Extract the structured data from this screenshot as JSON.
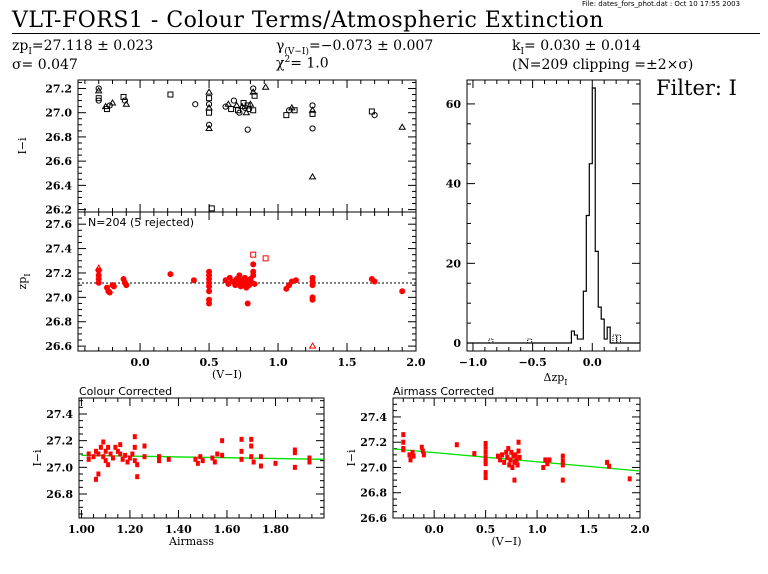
{
  "header": {
    "file_info": "File: dates_fors_phot.dat : Oct 10 17:55 2003",
    "title": "VLT-FORS1  -  Colour Terms/Atmospheric Extinction",
    "zp": "zp",
    "zp_sub": "I",
    "zp_value": "=27.118 ± 0.023",
    "sigma": "σ= 0.047",
    "gamma": "γ",
    "gamma_sub": "(V−I)",
    "gamma_value": "=−0.073 ± 0.007",
    "chi2": "χ",
    "chi2_sup": "2",
    "chi2_value": "=  1.0",
    "k": "k",
    "k_sub": "I",
    "k_value": "= 0.030 ± 0.014",
    "clipping": "(N=209 clipping =±2×σ)",
    "filter": "Filter: I"
  },
  "colors": {
    "red": "#ff0000",
    "green": "#00e000",
    "black": "#000000"
  },
  "chart_data": [
    {
      "id": "top",
      "type": "scatter",
      "ylabel": "I−i",
      "xlim": [
        -0.45,
        2.0
      ],
      "ylim": [
        26.18,
        27.27
      ],
      "yticks": [
        "27.2",
        "27.0",
        "26.8",
        "26.6",
        "26.4",
        "26.2"
      ],
      "ytick_values": [
        27.2,
        27.0,
        26.8,
        26.6,
        26.4,
        26.2
      ],
      "xtick_values": [
        0.0,
        0.5,
        1.0,
        1.5,
        2.0
      ],
      "points": [
        [
          -0.3,
          27.2
        ],
        [
          -0.3,
          27.18
        ],
        [
          -0.3,
          27.12
        ],
        [
          -0.3,
          27.1
        ],
        [
          -0.25,
          27.05
        ],
        [
          -0.24,
          27.03
        ],
        [
          -0.22,
          27.06
        ],
        [
          -0.2,
          27.08
        ],
        [
          -0.12,
          27.13
        ],
        [
          -0.11,
          27.1
        ],
        [
          -0.1,
          27.07
        ],
        [
          0.22,
          27.15
        ],
        [
          0.4,
          27.07
        ],
        [
          0.5,
          27.17
        ],
        [
          0.5,
          27.12
        ],
        [
          0.5,
          27.07
        ],
        [
          0.5,
          27.04
        ],
        [
          0.5,
          27.0
        ],
        [
          0.5,
          26.9
        ],
        [
          0.5,
          26.87
        ],
        [
          0.52,
          26.21
        ],
        [
          0.62,
          27.05
        ],
        [
          0.64,
          27.07
        ],
        [
          0.66,
          27.03
        ],
        [
          0.68,
          27.1
        ],
        [
          0.7,
          27.06
        ],
        [
          0.71,
          27.02
        ],
        [
          0.72,
          27.0
        ],
        [
          0.74,
          27.05
        ],
        [
          0.75,
          27.08
        ],
        [
          0.76,
          27.04
        ],
        [
          0.77,
          27.0
        ],
        [
          0.78,
          27.06
        ],
        [
          0.79,
          27.03
        ],
        [
          0.8,
          27.07
        ],
        [
          0.82,
          27.02
        ],
        [
          0.82,
          27.2
        ],
        [
          0.82,
          27.17
        ],
        [
          0.83,
          27.14
        ],
        [
          0.78,
          26.86
        ],
        [
          0.91,
          27.21
        ],
        [
          1.06,
          26.98
        ],
        [
          1.08,
          27.02
        ],
        [
          1.1,
          27.04
        ],
        [
          1.12,
          27.02
        ],
        [
          1.25,
          27.06
        ],
        [
          1.25,
          27.02
        ],
        [
          1.25,
          26.99
        ],
        [
          1.25,
          26.87
        ],
        [
          1.25,
          26.47
        ],
        [
          1.68,
          27.01
        ],
        [
          1.7,
          26.98
        ],
        [
          1.9,
          26.88
        ]
      ]
    },
    {
      "id": "mid",
      "type": "scatter",
      "ylabel": "zp",
      "ylabel_sub": "I",
      "xlabel": "(V−I)",
      "annotation": "N=204 (5 rejected)",
      "xlim": [
        -0.45,
        2.0
      ],
      "ylim": [
        26.56,
        27.7
      ],
      "fit_line": 27.118,
      "xticks": [
        "0.0",
        "0.5",
        "1.0",
        "1.5",
        "2.0"
      ],
      "xtick_values": [
        0.0,
        0.5,
        1.0,
        1.5,
        2.0
      ],
      "yticks": [
        "27.6",
        "27.4",
        "27.2",
        "27.0",
        "26.8",
        "26.6"
      ],
      "ytick_values": [
        27.6,
        27.4,
        27.2,
        27.0,
        26.8,
        26.6
      ],
      "points": [
        [
          -0.3,
          27.22
        ],
        [
          -0.3,
          27.18
        ],
        [
          -0.3,
          27.15
        ],
        [
          -0.3,
          27.12
        ],
        [
          -0.24,
          27.08
        ],
        [
          -0.23,
          27.05
        ],
        [
          -0.22,
          27.04
        ],
        [
          -0.2,
          27.1
        ],
        [
          -0.19,
          27.09
        ],
        [
          -0.12,
          27.15
        ],
        [
          -0.11,
          27.12
        ],
        [
          -0.1,
          27.1
        ],
        [
          0.22,
          27.19
        ],
        [
          0.39,
          27.14
        ],
        [
          0.5,
          27.21
        ],
        [
          0.5,
          27.18
        ],
        [
          0.5,
          27.15
        ],
        [
          0.5,
          27.12
        ],
        [
          0.5,
          27.09
        ],
        [
          0.5,
          27.05
        ],
        [
          0.5,
          26.98
        ],
        [
          0.5,
          26.95
        ],
        [
          0.62,
          27.14
        ],
        [
          0.64,
          27.11
        ],
        [
          0.65,
          27.16
        ],
        [
          0.67,
          27.13
        ],
        [
          0.69,
          27.1
        ],
        [
          0.7,
          27.15
        ],
        [
          0.71,
          27.12
        ],
        [
          0.72,
          27.18
        ],
        [
          0.73,
          27.09
        ],
        [
          0.74,
          27.14
        ],
        [
          0.75,
          27.11
        ],
        [
          0.76,
          27.16
        ],
        [
          0.77,
          27.08
        ],
        [
          0.78,
          27.13
        ],
        [
          0.79,
          27.1
        ],
        [
          0.8,
          27.15
        ],
        [
          0.81,
          27.12
        ],
        [
          0.82,
          27.18
        ],
        [
          0.82,
          27.21
        ],
        [
          0.83,
          27.11
        ],
        [
          0.78,
          26.95
        ],
        [
          0.82,
          27.27
        ],
        [
          1.06,
          27.07
        ],
        [
          1.08,
          27.1
        ],
        [
          1.1,
          27.13
        ],
        [
          1.13,
          27.14
        ],
        [
          1.25,
          27.16
        ],
        [
          1.25,
          27.13
        ],
        [
          1.25,
          27.1
        ],
        [
          1.25,
          27.0
        ],
        [
          1.25,
          26.98
        ],
        [
          1.68,
          27.15
        ],
        [
          1.7,
          27.13
        ],
        [
          1.9,
          27.05
        ]
      ],
      "rejected": [
        [
          -0.3,
          27.24
        ],
        [
          0.82,
          27.35
        ],
        [
          0.91,
          27.32
        ],
        [
          1.25,
          26.6
        ]
      ]
    },
    {
      "id": "hist",
      "type": "histogram",
      "xlabel": "Δzp",
      "xlabel_sub": "I",
      "xlim": [
        -1.05,
        0.4
      ],
      "ylim": [
        -2,
        66
      ],
      "xticks": [
        "−1.0",
        "−0.5",
        "0.0"
      ],
      "xtick_values": [
        -1.0,
        -0.5,
        0.0
      ],
      "yticks": [
        "60",
        "40",
        "20",
        "0"
      ],
      "ytick_values": [
        60,
        40,
        20,
        0
      ],
      "bin_edges": [
        -0.175,
        -0.15,
        -0.125,
        -0.1,
        -0.075,
        -0.05,
        -0.025,
        0.0,
        0.025,
        0.05,
        0.075,
        0.1,
        0.125,
        0.15,
        0.175
      ],
      "counts": [
        3,
        2,
        1,
        1,
        13,
        32,
        45,
        64,
        23,
        9,
        6,
        1,
        4,
        0
      ],
      "rejected_bins": [
        [
          -0.85,
          1
        ],
        [
          -0.525,
          1
        ],
        [
          0.19,
          2
        ],
        [
          0.22,
          2
        ]
      ]
    },
    {
      "id": "colour",
      "type": "scatter",
      "title": "Colour Corrected",
      "xlabel": "Airmass",
      "ylabel": "I−i",
      "xlim": [
        0.99,
        2.0
      ],
      "ylim": [
        26.62,
        27.52
      ],
      "fit": [
        [
          1.0,
          27.09
        ],
        [
          2.0,
          27.06
        ]
      ],
      "xticks": [
        "1.00",
        "1.20",
        "1.40",
        "1.60",
        "1.80"
      ],
      "xtick_values": [
        1.0,
        1.2,
        1.4,
        1.6,
        1.8
      ],
      "yticks": [
        "27.4",
        "27.2",
        "27.0",
        "26.8"
      ],
      "ytick_values": [
        27.4,
        27.2,
        27.0,
        26.8
      ],
      "points": [
        [
          1.03,
          27.1
        ],
        [
          1.03,
          27.06
        ],
        [
          1.05,
          27.08
        ],
        [
          1.06,
          27.12
        ],
        [
          1.06,
          26.91
        ],
        [
          1.07,
          26.95
        ],
        [
          1.07,
          27.1
        ],
        [
          1.08,
          27.15
        ],
        [
          1.09,
          27.19
        ],
        [
          1.09,
          27.08
        ],
        [
          1.1,
          27.12
        ],
        [
          1.1,
          27.05
        ],
        [
          1.11,
          27.15
        ],
        [
          1.11,
          27.02
        ],
        [
          1.12,
          27.1
        ],
        [
          1.13,
          27.07
        ],
        [
          1.14,
          27.15
        ],
        [
          1.15,
          27.12
        ],
        [
          1.16,
          27.1
        ],
        [
          1.16,
          27.17
        ],
        [
          1.17,
          27.06
        ],
        [
          1.18,
          27.09
        ],
        [
          1.19,
          27.04
        ],
        [
          1.2,
          27.07
        ],
        [
          1.21,
          27.1
        ],
        [
          1.22,
          27.05
        ],
        [
          1.22,
          27.15
        ],
        [
          1.22,
          27.23
        ],
        [
          1.23,
          26.93
        ],
        [
          1.23,
          27.02
        ],
        [
          1.26,
          27.16
        ],
        [
          1.26,
          27.08
        ],
        [
          1.32,
          27.08
        ],
        [
          1.32,
          27.05
        ],
        [
          1.36,
          27.06
        ],
        [
          1.47,
          27.06
        ],
        [
          1.48,
          27.03
        ],
        [
          1.49,
          27.08
        ],
        [
          1.5,
          27.05
        ],
        [
          1.54,
          27.07
        ],
        [
          1.55,
          27.04
        ],
        [
          1.56,
          27.1
        ],
        [
          1.58,
          27.2
        ],
        [
          1.58,
          27.09
        ],
        [
          1.66,
          27.21
        ],
        [
          1.66,
          27.12
        ],
        [
          1.66,
          27.06
        ],
        [
          1.7,
          27.21
        ],
        [
          1.7,
          27.16
        ],
        [
          1.7,
          27.08
        ],
        [
          1.71,
          27.04
        ],
        [
          1.74,
          27.08
        ],
        [
          1.74,
          27.01
        ],
        [
          1.8,
          27.03
        ],
        [
          1.88,
          27.13
        ],
        [
          1.88,
          27.11
        ],
        [
          1.88,
          27.0
        ],
        [
          1.94,
          27.07
        ],
        [
          1.94,
          27.04
        ]
      ]
    },
    {
      "id": "airmass",
      "type": "scatter",
      "title": "Airmass Corrected",
      "xlabel": "(V−I)",
      "ylabel": "I−i",
      "xlim": [
        -0.4,
        2.0
      ],
      "ylim": [
        26.6,
        27.55
      ],
      "fit": [
        [
          -0.4,
          27.147
        ],
        [
          2.0,
          26.972
        ]
      ],
      "xticks": [
        "0.0",
        "0.5",
        "1.0",
        "1.5",
        "2.0"
      ],
      "xtick_values": [
        0.0,
        0.5,
        1.0,
        1.5,
        2.0
      ],
      "yticks": [
        "27.4",
        "27.2",
        "27.0",
        "26.8",
        "26.6"
      ],
      "ytick_values": [
        27.4,
        27.2,
        27.0,
        26.8,
        26.6
      ],
      "points": [
        [
          -0.3,
          27.26
        ],
        [
          -0.3,
          27.2
        ],
        [
          -0.3,
          27.15
        ],
        [
          -0.3,
          27.14
        ],
        [
          -0.24,
          27.1
        ],
        [
          -0.23,
          27.06
        ],
        [
          -0.21,
          27.12
        ],
        [
          -0.2,
          27.09
        ],
        [
          -0.12,
          27.16
        ],
        [
          -0.11,
          27.13
        ],
        [
          -0.1,
          27.1
        ],
        [
          0.22,
          27.18
        ],
        [
          0.39,
          27.11
        ],
        [
          0.5,
          27.19
        ],
        [
          0.5,
          27.16
        ],
        [
          0.5,
          27.12
        ],
        [
          0.5,
          27.08
        ],
        [
          0.5,
          27.05
        ],
        [
          0.5,
          27.03
        ],
        [
          0.5,
          26.96
        ],
        [
          0.5,
          26.92
        ],
        [
          0.62,
          27.09
        ],
        [
          0.64,
          27.06
        ],
        [
          0.66,
          27.1
        ],
        [
          0.68,
          27.04
        ],
        [
          0.7,
          27.12
        ],
        [
          0.71,
          27.08
        ],
        [
          0.72,
          27.15
        ],
        [
          0.73,
          27.02
        ],
        [
          0.74,
          27.06
        ],
        [
          0.75,
          27.12
        ],
        [
          0.76,
          27.0
        ],
        [
          0.77,
          27.09
        ],
        [
          0.78,
          27.04
        ],
        [
          0.78,
          26.9
        ],
        [
          0.79,
          27.1
        ],
        [
          0.8,
          27.06
        ],
        [
          0.81,
          27.02
        ],
        [
          0.82,
          27.2
        ],
        [
          0.82,
          27.13
        ],
        [
          0.83,
          27.08
        ],
        [
          1.06,
          27.0
        ],
        [
          1.08,
          27.06
        ],
        [
          1.1,
          27.03
        ],
        [
          1.12,
          27.06
        ],
        [
          1.25,
          27.09
        ],
        [
          1.25,
          27.05
        ],
        [
          1.25,
          27.02
        ],
        [
          1.25,
          26.9
        ],
        [
          1.68,
          27.04
        ],
        [
          1.7,
          27.01
        ],
        [
          1.9,
          26.91
        ]
      ]
    }
  ]
}
